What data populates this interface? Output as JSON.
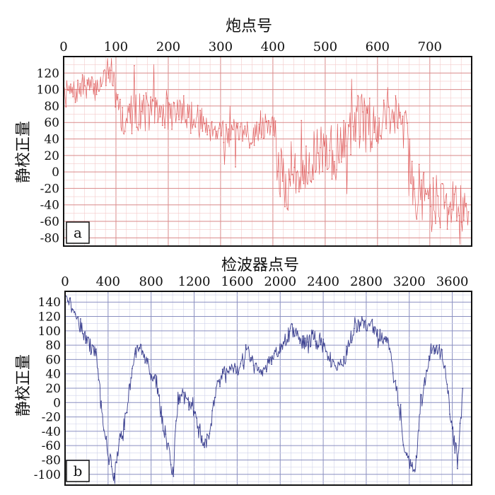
{
  "chart_data": [
    {
      "type": "line",
      "panel_label": "a",
      "xlabel": "炮点号",
      "ylabel": "静校正量",
      "xlim": [
        0,
        780
      ],
      "ylim": [
        -90,
        140
      ],
      "x_ticks": [
        0,
        100,
        200,
        300,
        400,
        500,
        600,
        700
      ],
      "y_ticks": [
        120,
        100,
        80,
        60,
        40,
        20,
        0,
        -20,
        -40,
        -60,
        -80
      ],
      "line_color": "#e06060",
      "grid_major_color": "#d98a8a",
      "grid_minor_color": "#f4caca",
      "series": [
        {
          "x": [
            0,
            20,
            40,
            60,
            80,
            100,
            110,
            130,
            150,
            170,
            200,
            230,
            260,
            290,
            320,
            350,
            380,
            400,
            410,
            430,
            450,
            470,
            490,
            510,
            530,
            550,
            570,
            590,
            610,
            630,
            655,
            665,
            680,
            700,
            720,
            740,
            760,
            775
          ],
          "values": [
            100,
            95,
            105,
            100,
            118,
            110,
            65,
            70,
            75,
            72,
            70,
            75,
            60,
            55,
            45,
            40,
            55,
            60,
            0,
            -20,
            0,
            15,
            25,
            30,
            20,
            50,
            60,
            60,
            65,
            70,
            75,
            -20,
            -25,
            -30,
            -35,
            -40,
            -45,
            -55
          ],
          "spread": [
            12,
            15,
            15,
            15,
            15,
            15,
            25,
            25,
            25,
            25,
            20,
            20,
            20,
            20,
            20,
            20,
            15,
            15,
            35,
            35,
            30,
            30,
            30,
            40,
            40,
            40,
            40,
            30,
            30,
            30,
            20,
            35,
            35,
            35,
            35,
            30,
            30,
            20
          ]
        }
      ]
    },
    {
      "type": "line",
      "panel_label": "b",
      "xlabel": "检波器点号",
      "ylabel": "静校正量",
      "xlim": [
        0,
        3780
      ],
      "ylim": [
        -115,
        155
      ],
      "x_ticks": [
        0,
        400,
        800,
        1200,
        1600,
        2000,
        2400,
        2800,
        3200,
        3600
      ],
      "y_ticks": [
        140,
        120,
        100,
        80,
        60,
        40,
        20,
        0,
        -20,
        -40,
        -60,
        -80,
        -100
      ],
      "line_color": "#3a3f8f",
      "grid_major_color": "#8a8fc0",
      "grid_minor_color": "#cfd2ea",
      "series": [
        {
          "x": [
            0,
            100,
            200,
            300,
            350,
            400,
            450,
            500,
            550,
            600,
            650,
            700,
            750,
            800,
            850,
            900,
            950,
            1000,
            1050,
            1100,
            1150,
            1200,
            1250,
            1300,
            1350,
            1400,
            1500,
            1600,
            1700,
            1800,
            1900,
            2000,
            2100,
            2200,
            2300,
            2400,
            2500,
            2600,
            2700,
            2800,
            2900,
            3000,
            3050,
            3100,
            3150,
            3200,
            3250,
            3300,
            3400,
            3500,
            3550,
            3600,
            3650,
            3700
          ],
          "values": [
            155,
            120,
            90,
            60,
            -20,
            -70,
            -100,
            -60,
            -30,
            20,
            70,
            75,
            60,
            40,
            30,
            -20,
            -60,
            -100,
            0,
            15,
            0,
            -10,
            -40,
            -60,
            -40,
            20,
            50,
            45,
            70,
            40,
            55,
            75,
            100,
            85,
            90,
            80,
            50,
            60,
            110,
            110,
            100,
            85,
            40,
            0,
            -70,
            -80,
            -105,
            -10,
            75,
            70,
            30,
            -40,
            -80,
            20
          ],
          "spread": [
            8,
            10,
            12,
            12,
            12,
            12,
            12,
            12,
            12,
            10,
            10,
            10,
            10,
            10,
            10,
            12,
            12,
            12,
            10,
            10,
            10,
            10,
            10,
            10,
            10,
            10,
            10,
            10,
            10,
            10,
            10,
            10,
            12,
            12,
            12,
            12,
            10,
            10,
            12,
            12,
            12,
            12,
            12,
            12,
            12,
            12,
            12,
            12,
            10,
            10,
            10,
            12,
            12,
            12
          ]
        }
      ]
    }
  ]
}
